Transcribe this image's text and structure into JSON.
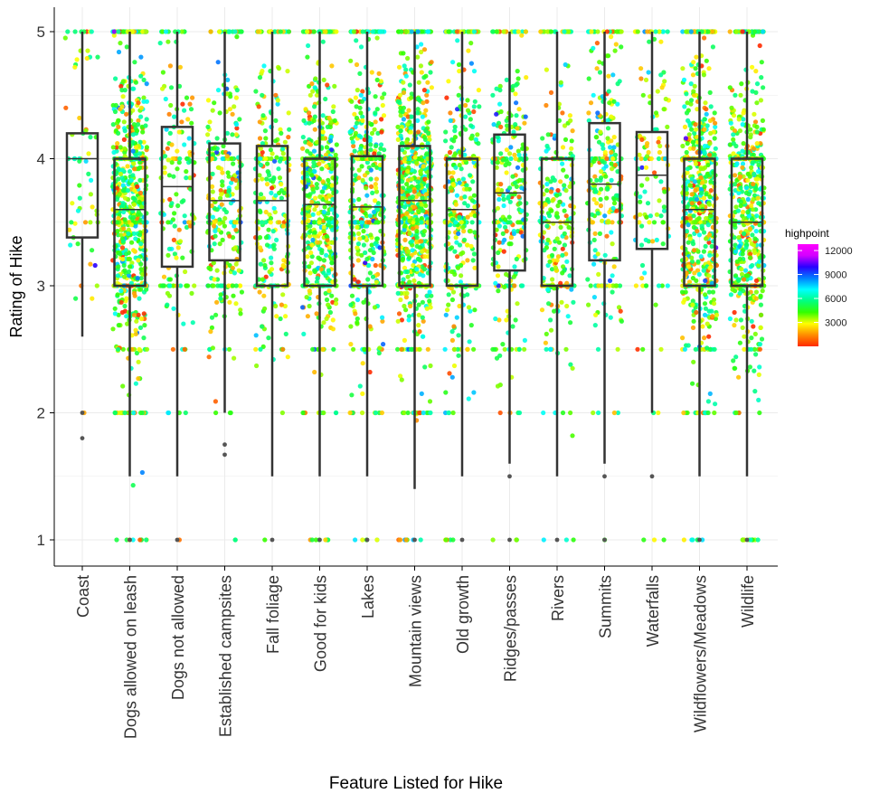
{
  "chart_data": {
    "type": "boxplot",
    "title": "",
    "xlabel": "Feature Listed for Hike",
    "ylabel": "Rating of Hike",
    "ylim": [
      0.78,
      5.2
    ],
    "yticks": [
      "1",
      "2",
      "3",
      "4",
      "5"
    ],
    "grid": true,
    "categories": [
      "Coast",
      "Dogs allowed on leash",
      "Dogs not allowed",
      "Established campsites",
      "Fall foliage",
      "Good for kids",
      "Lakes",
      "Mountain views",
      "Old growth",
      "Ridges/passes",
      "Rivers",
      "Summits",
      "Waterfalls",
      "Wildflowers/Meadows",
      "Wildlife"
    ],
    "boxes": [
      {
        "category": "Coast",
        "whisker_low": 2.6,
        "q1": 3.38,
        "median": 4.0,
        "q3": 4.2,
        "whisker_high": 5.0,
        "outliers": [
          1.8,
          2.0
        ]
      },
      {
        "category": "Dogs allowed on leash",
        "whisker_low": 1.5,
        "q1": 3.0,
        "median": 3.6,
        "q3": 4.0,
        "whisker_high": 5.0,
        "outliers": [
          1.0
        ]
      },
      {
        "category": "Dogs not allowed",
        "whisker_low": 1.5,
        "q1": 3.15,
        "median": 3.78,
        "q3": 4.25,
        "whisker_high": 5.0,
        "outliers": [
          1.0
        ]
      },
      {
        "category": "Established campsites",
        "whisker_low": 2.0,
        "q1": 3.2,
        "median": 3.67,
        "q3": 4.12,
        "whisker_high": 5.0,
        "outliers": [
          1.67,
          1.75
        ]
      },
      {
        "category": "Fall foliage",
        "whisker_low": 1.5,
        "q1": 3.0,
        "median": 3.67,
        "q3": 4.1,
        "whisker_high": 5.0,
        "outliers": [
          1.0
        ]
      },
      {
        "category": "Good for kids",
        "whisker_low": 1.5,
        "q1": 3.0,
        "median": 3.64,
        "q3": 4.0,
        "whisker_high": 5.0,
        "outliers": [
          1.0
        ]
      },
      {
        "category": "Lakes",
        "whisker_low": 1.5,
        "q1": 3.0,
        "median": 3.62,
        "q3": 4.02,
        "whisker_high": 5.0,
        "outliers": [
          1.0
        ]
      },
      {
        "category": "Mountain views",
        "whisker_low": 1.4,
        "q1": 3.0,
        "median": 3.67,
        "q3": 4.1,
        "whisker_high": 5.0,
        "outliers": [
          1.0
        ]
      },
      {
        "category": "Old growth",
        "whisker_low": 1.5,
        "q1": 3.0,
        "median": 3.6,
        "q3": 4.0,
        "whisker_high": 5.0,
        "outliers": [
          1.0
        ]
      },
      {
        "category": "Ridges/passes",
        "whisker_low": 1.6,
        "q1": 3.12,
        "median": 3.73,
        "q3": 4.19,
        "whisker_high": 5.0,
        "outliers": [
          1.0,
          1.5
        ]
      },
      {
        "category": "Rivers",
        "whisker_low": 1.5,
        "q1": 3.0,
        "median": 3.5,
        "q3": 4.0,
        "whisker_high": 5.0,
        "outliers": [
          1.0
        ]
      },
      {
        "category": "Summits",
        "whisker_low": 1.6,
        "q1": 3.2,
        "median": 3.8,
        "q3": 4.28,
        "whisker_high": 5.0,
        "outliers": [
          1.0,
          1.5
        ]
      },
      {
        "category": "Waterfalls",
        "whisker_low": 2.0,
        "q1": 3.29,
        "median": 3.87,
        "q3": 4.21,
        "whisker_high": 5.0,
        "outliers": [
          1.5
        ]
      },
      {
        "category": "Wildflowers/Meadows",
        "whisker_low": 1.5,
        "q1": 3.0,
        "median": 3.6,
        "q3": 4.0,
        "whisker_high": 5.0,
        "outliers": [
          1.0
        ]
      },
      {
        "category": "Wildlife",
        "whisker_low": 1.5,
        "q1": 3.0,
        "median": 3.5,
        "q3": 4.0,
        "whisker_high": 5.0,
        "outliers": [
          1.0
        ]
      }
    ],
    "jitter_points": {
      "color_by": "highpoint",
      "approx_counts": [
        60,
        700,
        160,
        280,
        270,
        560,
        420,
        800,
        350,
        280,
        260,
        250,
        130,
        700,
        560
      ]
    },
    "legend": {
      "title": "highpoint",
      "placement": "right",
      "labels": [
        "12000",
        "9000",
        "6000",
        "3000"
      ],
      "values": [
        12000,
        9000,
        6000,
        3000
      ],
      "range": [
        0,
        12800
      ],
      "gradient_colors": [
        "#ff2a00",
        "#ff8c00",
        "#ffff00",
        "#33ff00",
        "#00ff80",
        "#00ffff",
        "#0080ff",
        "#2a00ff",
        "#d400ff",
        "#ff00ff"
      ]
    },
    "colors": {
      "box_stroke": "#333333",
      "grid": "#ebebeb",
      "axis": "#000000"
    }
  }
}
